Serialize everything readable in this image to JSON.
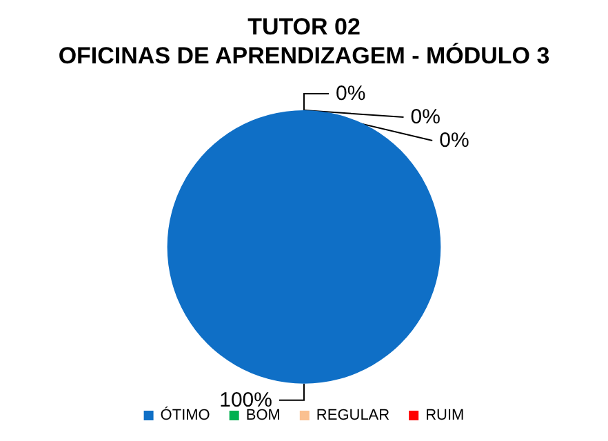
{
  "chart_data": {
    "type": "pie",
    "title": "TUTOR 02",
    "subtitle": "OFICINAS DE APRENDIZAGEM - MÓDULO 3",
    "categories": [
      "ÓTIMO",
      "BOM",
      "REGULAR",
      "RUIM"
    ],
    "values": [
      100,
      0,
      0,
      0
    ],
    "colors": [
      "#0f6fc6",
      "#00b050",
      "#fac090",
      "#ff0000"
    ],
    "value_labels": [
      "100%",
      "0%",
      "0%",
      "0%"
    ],
    "legend": "bottom"
  }
}
